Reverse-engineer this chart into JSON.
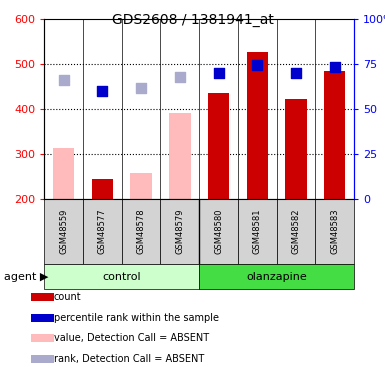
{
  "title": "GDS2608 / 1381941_at",
  "samples": [
    "GSM48559",
    "GSM48577",
    "GSM48578",
    "GSM48579",
    "GSM48580",
    "GSM48581",
    "GSM48582",
    "GSM48583"
  ],
  "bar_values": [
    null,
    245,
    null,
    null,
    435,
    527,
    422,
    483
  ],
  "absent_bar_values": [
    313,
    null,
    257,
    390,
    null,
    null,
    null,
    null
  ],
  "absent_bar_color": "#ffbbbb",
  "present_bar_color": "#cc0000",
  "dot_values_present": [
    null,
    440,
    null,
    null,
    480,
    498,
    480,
    492
  ],
  "dot_values_absent": [
    463,
    null,
    446,
    470,
    null,
    null,
    null,
    null
  ],
  "dot_color_present": "#0000cc",
  "dot_color_absent": "#aaaacc",
  "ylim": [
    200,
    600
  ],
  "yticks": [
    200,
    300,
    400,
    500,
    600
  ],
  "y2lim": [
    0,
    100
  ],
  "y2ticks": [
    0,
    25,
    50,
    75,
    100
  ],
  "y2ticklabels": [
    "0",
    "25",
    "50",
    "75",
    "100%"
  ],
  "ctrl_color_light": "#ccffcc",
  "ctrl_color_dark": "#44dd44",
  "legend_items": [
    {
      "label": "count",
      "color": "#cc0000"
    },
    {
      "label": "percentile rank within the sample",
      "color": "#0000cc"
    },
    {
      "label": "value, Detection Call = ABSENT",
      "color": "#ffbbbb"
    },
    {
      "label": "rank, Detection Call = ABSENT",
      "color": "#aaaacc"
    }
  ],
  "bar_width": 0.55,
  "dot_size": 55,
  "figsize": [
    3.85,
    3.75
  ],
  "dpi": 100
}
